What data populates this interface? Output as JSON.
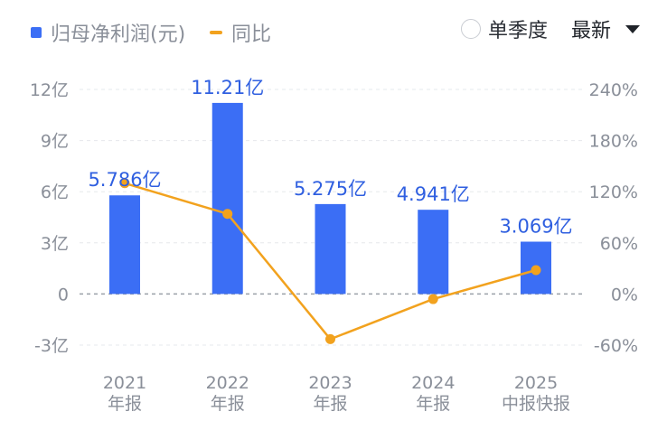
{
  "legend": {
    "bar_label": "归母净利润(元)",
    "line_label": "同比"
  },
  "controls": {
    "single_quarter_label": "单季度",
    "latest_label": "最新"
  },
  "colors": {
    "bar": "#3b6ef5",
    "line": "#f2a21e",
    "grid": "#e6e8ec",
    "zero_line": "#9aa0a8"
  },
  "chart_data": {
    "type": "bar",
    "categories": [
      [
        "2021",
        "年报"
      ],
      [
        "2022",
        "年报"
      ],
      [
        "2023",
        "年报"
      ],
      [
        "2024",
        "年报"
      ],
      [
        "2025",
        "中报快报"
      ]
    ],
    "series": [
      {
        "name": "归母净利润(元)",
        "type": "bar",
        "axis": "left",
        "values": [
          5.786,
          11.21,
          5.275,
          4.941,
          3.069
        ],
        "labels": [
          "5.786亿",
          "11.21亿",
          "5.275亿",
          "4.941亿",
          "3.069亿"
        ]
      },
      {
        "name": "同比",
        "type": "line",
        "axis": "right",
        "values": [
          130,
          94,
          -53,
          -6,
          28
        ]
      }
    ],
    "y_left": {
      "ticks": [
        12,
        9,
        6,
        3,
        0,
        -3
      ],
      "tick_labels": [
        "12亿",
        "9亿",
        "6亿",
        "3亿",
        "0",
        "-3亿"
      ],
      "range": [
        -3,
        12
      ]
    },
    "y_right": {
      "ticks": [
        240,
        180,
        120,
        60,
        0,
        -60
      ],
      "tick_labels": [
        "240%",
        "180%",
        "120%",
        "60%",
        "0%",
        "-60%"
      ],
      "range": [
        -60,
        240
      ]
    },
    "grid": true,
    "legend_position": "top-left"
  }
}
